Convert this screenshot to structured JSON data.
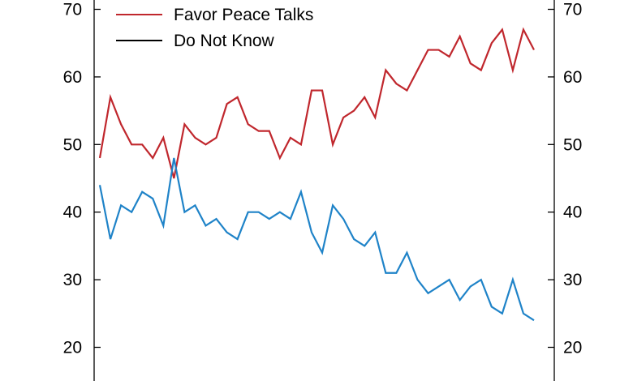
{
  "colors": {
    "favor_peace_talks": "#c0272d",
    "do_not_know_legend": "#000000",
    "blue_series": "#1f83c8",
    "axis": "#000000"
  },
  "chart_data": {
    "type": "line",
    "title": "",
    "xlabel": "",
    "ylabel": "",
    "ylim": [
      20,
      70
    ],
    "y_ticks": [
      20,
      30,
      40,
      50,
      60,
      70
    ],
    "y_tick_labels": [
      "20",
      "30",
      "40",
      "50",
      "60",
      "70"
    ],
    "grid": false,
    "legend_position": "top-left",
    "legend": [
      {
        "label": "Favor Peace Talks",
        "color": "#c0272d"
      },
      {
        "label": "Do Not Know",
        "color": "#000000"
      }
    ],
    "x": [
      1,
      2,
      3,
      4,
      5,
      6,
      7,
      8,
      9,
      10,
      11,
      12,
      13,
      14,
      15,
      16,
      17,
      18,
      19,
      20,
      21,
      22,
      23,
      24,
      25,
      26,
      27,
      28,
      29,
      30,
      31,
      32,
      33,
      34,
      35,
      36,
      37,
      38,
      39,
      40,
      41,
      42,
      43
    ],
    "series": [
      {
        "name": "Favor Peace Talks",
        "color": "#c0272d",
        "values": [
          48,
          57,
          53,
          50,
          50,
          48,
          51,
          45,
          53,
          51,
          50,
          51,
          56,
          57,
          53,
          52,
          52,
          48,
          51,
          50,
          58,
          58,
          50,
          54,
          55,
          57,
          54,
          61,
          59,
          58,
          61,
          64,
          64,
          63,
          66,
          62,
          61,
          65,
          67,
          61,
          67,
          64,
          null
        ]
      },
      {
        "color": "#1f83c8",
        "values": [
          44,
          36,
          41,
          40,
          43,
          42,
          38,
          48,
          40,
          41,
          38,
          39,
          37,
          36,
          40,
          40,
          39,
          40,
          39,
          43,
          37,
          34,
          41,
          39,
          36,
          35,
          37,
          31,
          31,
          34,
          30,
          28,
          29,
          30,
          27,
          29,
          30,
          26,
          25,
          30,
          25,
          24,
          null
        ]
      }
    ]
  }
}
